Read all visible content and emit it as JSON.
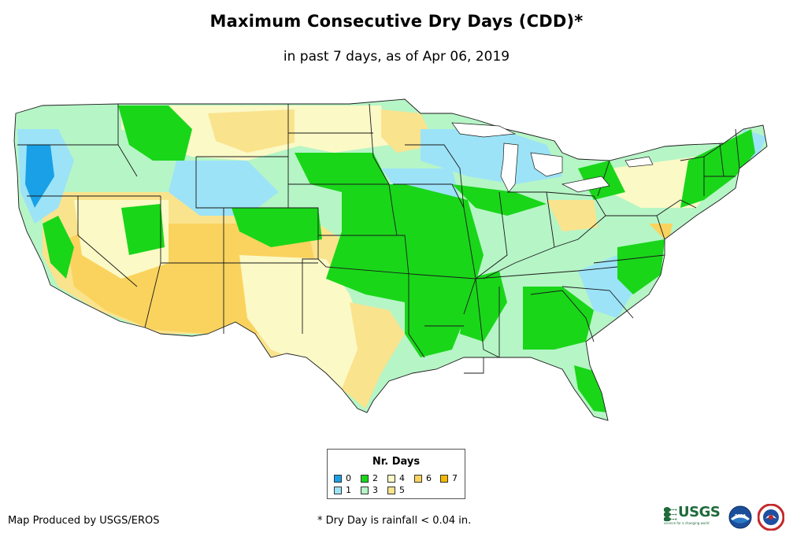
{
  "header": {
    "title": "Maximum Consecutive Dry Days (CDD)*",
    "subtitle": "in past 7 days, as of Apr 06, 2019"
  },
  "legend": {
    "title": "Nr. Days",
    "items": [
      {
        "label": "0",
        "color": "#1aa0e6"
      },
      {
        "label": "1",
        "color": "#9ce3f7"
      },
      {
        "label": "2",
        "color": "#19d619"
      },
      {
        "label": "3",
        "color": "#b6f5c6"
      },
      {
        "label": "4",
        "color": "#fbf9c6"
      },
      {
        "label": "5",
        "color": "#fae38d"
      },
      {
        "label": "6",
        "color": "#fad35e"
      },
      {
        "label": "7",
        "color": "#f6b800"
      }
    ]
  },
  "footer": {
    "credit": "Map Produced by USGS/EROS",
    "note": "* Dry Day is rainfall < 0.04 in."
  },
  "logos": {
    "usgs_text": "USGS",
    "usgs_tagline": "science for a changing world",
    "noaa_text": "noaa"
  },
  "map": {
    "region": "Contiguous United States",
    "state_line_color": "#1a1a1a"
  }
}
